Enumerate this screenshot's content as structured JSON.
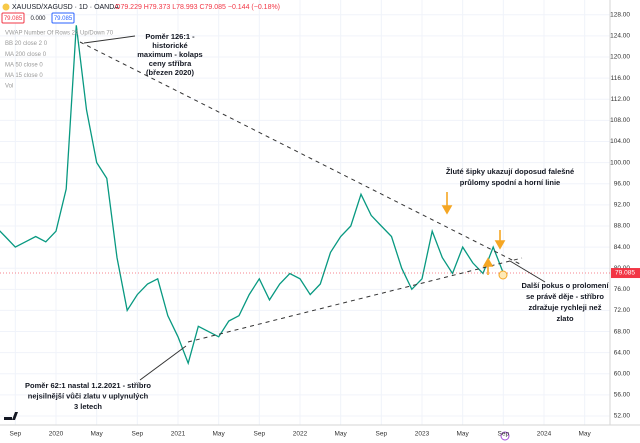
{
  "chart_data": {
    "type": "line",
    "title": "XAUUSD/XAGUSD · 1D · OANDA",
    "ohlc": "O79.229 H79.373 L78.993 C79.085 −0.144 (−0.18%)",
    "sell": "79.085",
    "spread": "0.000",
    "buy": "79.085",
    "indicators": [
      "VWAP Number Of Rows 24 Up/Down 70",
      "BB 20 close 2 0",
      "MA 200 close 0",
      "MA 50 close 0",
      "MA 15 close 0",
      "Vol"
    ],
    "x": [
      "2019-07",
      "2019-08",
      "2019-09",
      "2019-10",
      "2019-11",
      "2019-12",
      "2020-01",
      "2020-02",
      "2020-03",
      "2020-04",
      "2020-05",
      "2020-06",
      "2020-07",
      "2020-08",
      "2020-09",
      "2020-10",
      "2020-11",
      "2020-12",
      "2021-01",
      "2021-02",
      "2021-03",
      "2021-04",
      "2021-05",
      "2021-06",
      "2021-07",
      "2021-08",
      "2021-09",
      "2021-10",
      "2021-11",
      "2021-12",
      "2022-01",
      "2022-02",
      "2022-03",
      "2022-04",
      "2022-05",
      "2022-06",
      "2022-07",
      "2022-08",
      "2022-09",
      "2022-10",
      "2022-11",
      "2022-12",
      "2023-01",
      "2023-02",
      "2023-03",
      "2023-04",
      "2023-05",
      "2023-06",
      "2023-07",
      "2023-08",
      "2023-09"
    ],
    "series": [
      {
        "color": "#089981",
        "values": [
          88,
          86,
          84,
          85,
          86,
          85,
          87,
          95,
          126,
          110,
          100,
          97,
          82,
          72,
          75,
          77,
          78,
          71,
          67,
          62,
          69,
          68,
          67,
          70,
          71,
          75,
          78,
          74,
          77,
          79,
          78,
          75,
          77,
          83,
          86,
          88,
          94,
          90,
          88,
          86,
          80,
          76,
          78,
          87,
          82,
          79,
          84,
          81,
          79,
          84,
          79.085
        ]
      }
    ],
    "last_price": 79.085,
    "xlim": [
      "2019-07",
      "2024-07"
    ],
    "xticks": [
      {
        "value": "2019-09",
        "label": "Sep"
      },
      {
        "value": "2020-01",
        "label": "2020"
      },
      {
        "value": "2020-05",
        "label": "May"
      },
      {
        "value": "2020-09",
        "label": "Sep"
      },
      {
        "value": "2021-01",
        "label": "2021"
      },
      {
        "value": "2021-05",
        "label": "May"
      },
      {
        "value": "2021-09",
        "label": "Sep"
      },
      {
        "value": "2022-01",
        "label": "2022"
      },
      {
        "value": "2022-05",
        "label": "May"
      },
      {
        "value": "2022-09",
        "label": "Sep"
      },
      {
        "value": "2023-01",
        "label": "2023"
      },
      {
        "value": "2023-05",
        "label": "May"
      },
      {
        "value": "2023-09",
        "label": "Sep"
      },
      {
        "value": "2024-01",
        "label": "2024"
      },
      {
        "value": "2024-05",
        "label": "May"
      }
    ],
    "ylim": [
      50.3,
      130.8
    ],
    "yticks": [
      {
        "value": 128,
        "label": "128.00"
      },
      {
        "value": 124,
        "label": "124.00"
      },
      {
        "value": 120,
        "label": "120.00"
      },
      {
        "value": 116,
        "label": "116.00"
      },
      {
        "value": 112,
        "label": "112.00"
      },
      {
        "value": 108,
        "label": "108.00"
      },
      {
        "value": 104,
        "label": "104.00"
      },
      {
        "value": 100,
        "label": "100.00"
      },
      {
        "value": 96,
        "label": "96.00"
      },
      {
        "value": 92,
        "label": "92.00"
      },
      {
        "value": 88,
        "label": "88.00"
      },
      {
        "value": 84,
        "label": "84.00"
      },
      {
        "value": 80,
        "label": "80.00"
      },
      {
        "value": 76,
        "label": "76.00"
      },
      {
        "value": 72,
        "label": "72.00"
      },
      {
        "value": 68,
        "label": "68.00"
      },
      {
        "value": 64,
        "label": "64.00"
      },
      {
        "value": 60,
        "label": "60.00"
      },
      {
        "value": 56,
        "label": "56.00"
      },
      {
        "value": 52,
        "label": "52.00"
      }
    ],
    "grid": true,
    "annotations": [
      [
        "Poměr 126:1 -",
        "historické",
        "maximum - kolaps",
        "ceny stříbra",
        "(březen 2020)"
      ],
      [
        "Poměr 62:1 nastal 1.2.2021 - stříbro",
        "nejsilnější vůči zlatu v uplynulých",
        "3 letech"
      ],
      [
        "Žluté šipky ukazují doposud falešné",
        "průlomy spodní a horní linie"
      ],
      [
        "Další pokus o prolomení",
        "se právě děje - stříbro",
        "zdražuje rychleji než",
        "zlato"
      ]
    ]
  }
}
